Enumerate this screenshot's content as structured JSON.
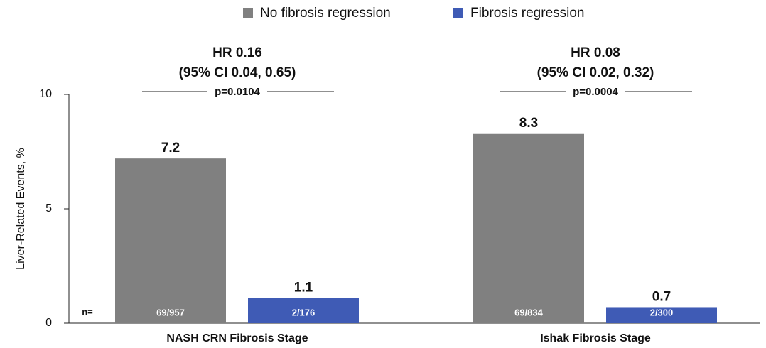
{
  "chart_data": {
    "type": "bar",
    "y_label": "Liver-Related Events, %",
    "categories": [
      "NASH CRN Fibrosis Stage",
      "Ishak Fibrosis Stage"
    ],
    "series": [
      {
        "name": "No fibrosis regression",
        "color": "#808080",
        "values": [
          7.2,
          8.3
        ],
        "counts": [
          "69/957",
          "69/834"
        ]
      },
      {
        "name": "Fibrosis regression",
        "color": "#3f5bb5",
        "values": [
          1.1,
          0.7
        ],
        "counts": [
          "2/176",
          "2/300"
        ]
      }
    ],
    "n_label": "n=",
    "annotations": [
      {
        "hr": "HR 0.16",
        "ci": "(95% CI 0.04, 0.65)",
        "p": "p=0.0104"
      },
      {
        "hr": "HR 0.08",
        "ci": "(95% CI 0.02, 0.32)",
        "p": "p=0.0004"
      }
    ],
    "ylim": [
      0,
      10
    ],
    "yticks": [
      0,
      5,
      10
    ],
    "legend": "top"
  }
}
